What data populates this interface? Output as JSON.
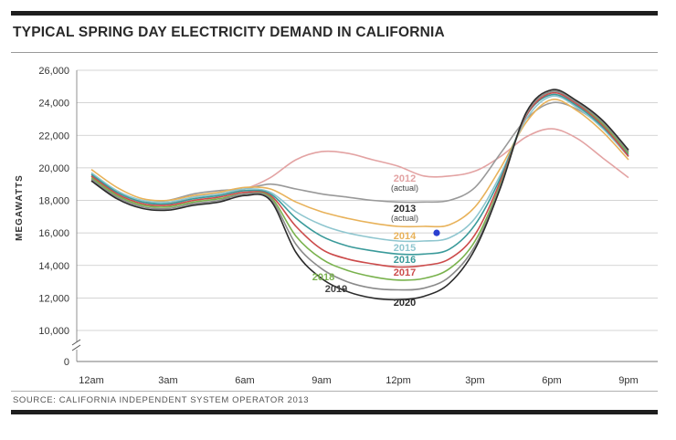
{
  "title": "TYPICAL SPRING DAY ELECTRICITY DEMAND IN CALIFORNIA",
  "source": "SOURCE: CALIFORNIA INDEPENDENT SYSTEM OPERATOR 2013",
  "chart_data": {
    "type": "line",
    "title": "TYPICAL SPRING DAY ELECTRICITY DEMAND IN CALIFORNIA",
    "xlabel": "",
    "ylabel": "MEGAWATTS",
    "ylim": [
      0,
      26000
    ],
    "y_axis_break": true,
    "grid": "horizontal",
    "x_ticks": [
      "12am",
      "3am",
      "6am",
      "9am",
      "12pm",
      "3pm",
      "6pm",
      "9pm"
    ],
    "y_ticks": [
      0,
      10000,
      12000,
      14000,
      16000,
      18000,
      20000,
      22000,
      24000,
      26000
    ],
    "y_tick_labels": [
      "0",
      "10,000",
      "12,000",
      "14,000",
      "16,000",
      "18,000",
      "20,000",
      "22,000",
      "24,000",
      "26,000"
    ],
    "x_hours": [
      0,
      1,
      2,
      3,
      4,
      5,
      6,
      7,
      8,
      9,
      10,
      11,
      12,
      13,
      14,
      15,
      16,
      17,
      18,
      19,
      20,
      21
    ],
    "series": [
      {
        "name": "2012",
        "sublabel": "(actual)",
        "color": "#e3a3a3",
        "values": [
          19200,
          18300,
          17700,
          17800,
          18200,
          18400,
          18700,
          19400,
          20500,
          21000,
          20900,
          20500,
          20100,
          19500,
          19500,
          19800,
          20700,
          21900,
          22400,
          21800,
          20600,
          19400
        ]
      },
      {
        "name": "2013",
        "sublabel": "(actual)",
        "color": "#999999",
        "values": [
          19500,
          18500,
          17900,
          18000,
          18400,
          18600,
          18700,
          19000,
          18700,
          18400,
          18200,
          18000,
          17900,
          17900,
          18000,
          18800,
          20900,
          23000,
          24000,
          23600,
          22500,
          21000
        ]
      },
      {
        "name": "2014",
        "color": "#e8b25a",
        "values": [
          19900,
          18800,
          18100,
          18000,
          18300,
          18500,
          18800,
          18700,
          17900,
          17300,
          16900,
          16600,
          16400,
          16400,
          16500,
          17600,
          20000,
          22800,
          24200,
          23500,
          22200,
          20500
        ]
      },
      {
        "name": "2015",
        "color": "#8fc6cf",
        "values": [
          19700,
          18600,
          18000,
          17900,
          18200,
          18400,
          18700,
          18500,
          17300,
          16500,
          16000,
          15700,
          15500,
          15500,
          15700,
          16900,
          19600,
          23000,
          24400,
          23700,
          22400,
          20700
        ]
      },
      {
        "name": "2016",
        "color": "#3a9a9a",
        "values": [
          19600,
          18500,
          17900,
          17800,
          18100,
          18300,
          18600,
          18400,
          16900,
          15800,
          15200,
          14900,
          14700,
          14700,
          15000,
          16500,
          19400,
          23200,
          24500,
          23800,
          22500,
          20800
        ]
      },
      {
        "name": "2017",
        "color": "#cc4b4b",
        "values": [
          19500,
          18400,
          17800,
          17700,
          18000,
          18200,
          18500,
          18300,
          16400,
          15000,
          14400,
          14100,
          13900,
          14000,
          14400,
          15900,
          19200,
          23200,
          24600,
          23900,
          22600,
          20700
        ]
      },
      {
        "name": "2018",
        "color": "#79b24d",
        "values": [
          19400,
          18300,
          17700,
          17600,
          17900,
          18100,
          18400,
          18200,
          15800,
          14400,
          13700,
          13300,
          13100,
          13200,
          13800,
          15500,
          19000,
          23300,
          24700,
          24000,
          22700,
          20900
        ]
      },
      {
        "name": "2019",
        "color": "#8a8a8a",
        "values": [
          19300,
          18200,
          17600,
          17500,
          17800,
          18000,
          18400,
          18100,
          15300,
          13800,
          13000,
          12600,
          12500,
          12600,
          13300,
          15200,
          18900,
          23300,
          24700,
          24000,
          22800,
          21000
        ]
      },
      {
        "name": "2020",
        "color": "#2b2b2b",
        "values": [
          19200,
          18100,
          17500,
          17400,
          17700,
          17900,
          18300,
          18000,
          14800,
          13200,
          12400,
          12000,
          11900,
          12100,
          12900,
          15000,
          18800,
          23400,
          24800,
          24100,
          22900,
          21100
        ]
      }
    ],
    "annotations": [
      {
        "label": "2012",
        "sublabel": "(actual)",
        "color": "#e3a3a3"
      },
      {
        "label": "2013",
        "sublabel": "(actual)",
        "color": "#2b2b2b"
      },
      {
        "label": "2014",
        "color": "#e8b25a"
      },
      {
        "label": "2015",
        "color": "#8fc6cf"
      },
      {
        "label": "2016",
        "color": "#3a9a9a"
      },
      {
        "label": "2017",
        "color": "#cc4b4b"
      },
      {
        "label": "2018",
        "color": "#79b24d"
      },
      {
        "label": "2019",
        "color": "#444444"
      },
      {
        "label": "2020",
        "color": "#2b2b2b"
      }
    ],
    "marker": {
      "hour": 13.5,
      "value": 16000,
      "color": "#2a3fd0"
    }
  }
}
